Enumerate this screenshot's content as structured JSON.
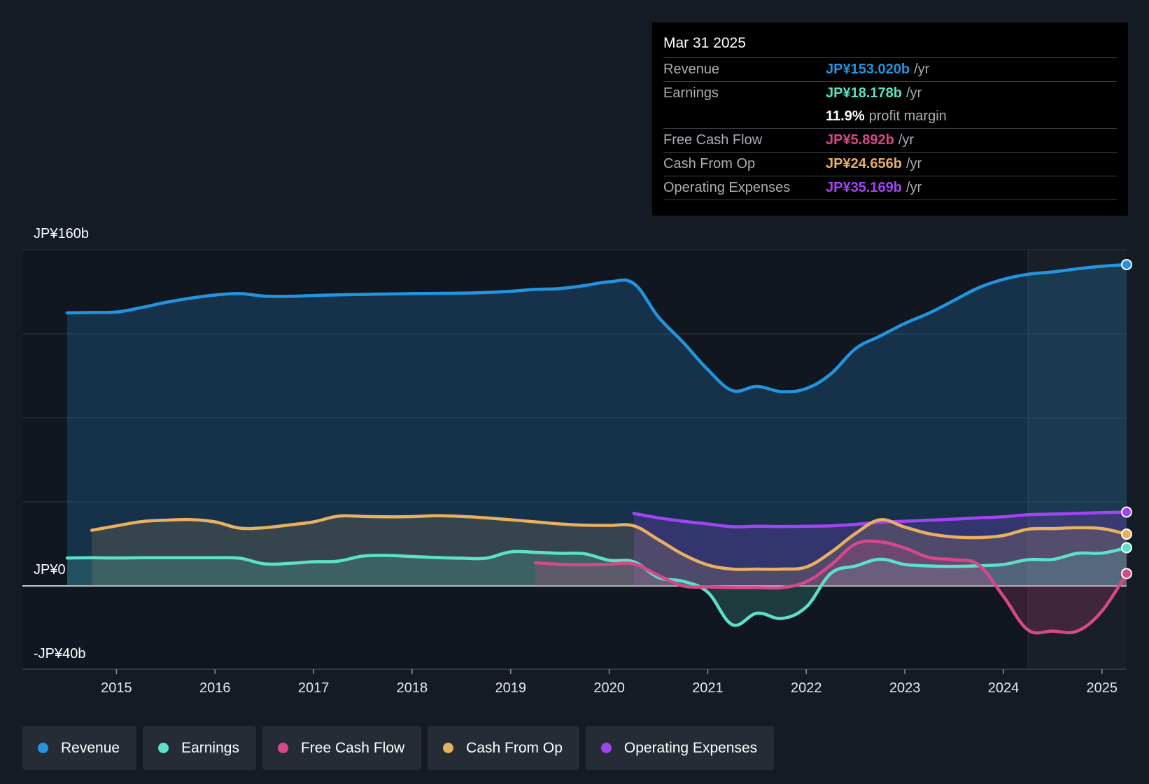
{
  "chart_data": {
    "type": "area",
    "title": "",
    "y_unit_prefix": "JP¥",
    "y_tick_labels": [
      "JP¥160b",
      "JP¥0",
      "-JP¥40b"
    ],
    "ylim": [
      -40,
      160
    ],
    "xlim": [
      2014.5,
      2025.25
    ],
    "x_tick_labels": [
      "2015",
      "2016",
      "2017",
      "2018",
      "2019",
      "2020",
      "2021",
      "2022",
      "2023",
      "2024",
      "2025"
    ],
    "x_ticks": [
      2015,
      2016,
      2017,
      2018,
      2019,
      2020,
      2021,
      2022,
      2023,
      2024,
      2025
    ],
    "highlight_start": 2024.25,
    "series": [
      {
        "name": "Revenue",
        "color": "#2394df",
        "x": [
          2014.5,
          2014.75,
          2015.0,
          2015.25,
          2015.5,
          2015.75,
          2016.0,
          2016.25,
          2016.5,
          2016.75,
          2017.0,
          2017.25,
          2017.5,
          2017.75,
          2018.0,
          2018.25,
          2018.5,
          2018.75,
          2019.0,
          2019.25,
          2019.5,
          2019.75,
          2020.0,
          2020.25,
          2020.5,
          2020.75,
          2021.0,
          2021.25,
          2021.5,
          2021.75,
          2022.0,
          2022.25,
          2022.5,
          2022.75,
          2023.0,
          2023.25,
          2023.5,
          2023.75,
          2024.0,
          2024.25,
          2024.5,
          2024.75,
          2025.0,
          2025.25
        ],
        "values": [
          130,
          130.2,
          130.4,
          132.5,
          135,
          137,
          138.5,
          139.2,
          138,
          137.9,
          138.3,
          138.6,
          138.8,
          139,
          139.2,
          139.3,
          139.4,
          139.7,
          140.3,
          141.2,
          141.6,
          143,
          144.8,
          144,
          128,
          116,
          103,
          93,
          95,
          92.5,
          94,
          101,
          113,
          119,
          125,
          130,
          136,
          142,
          146,
          148.4,
          149.5,
          151,
          152.2,
          153.02
        ]
      },
      {
        "name": "Earnings",
        "color": "#5ce1c8",
        "x": [
          2014.5,
          2014.75,
          2015.0,
          2015.25,
          2015.5,
          2015.75,
          2016.0,
          2016.25,
          2016.5,
          2016.75,
          2017.0,
          2017.25,
          2017.5,
          2017.75,
          2018.0,
          2018.25,
          2018.5,
          2018.75,
          2019.0,
          2019.25,
          2019.5,
          2019.75,
          2020.0,
          2020.25,
          2020.5,
          2020.75,
          2021.0,
          2021.25,
          2021.5,
          2021.75,
          2022.0,
          2022.25,
          2022.5,
          2022.75,
          2023.0,
          2023.25,
          2023.5,
          2023.75,
          2024.0,
          2024.25,
          2024.5,
          2024.75,
          2025.0,
          2025.25
        ],
        "values": [
          13.3,
          13.4,
          13.3,
          13.4,
          13.4,
          13.4,
          13.4,
          13.2,
          10.5,
          10.7,
          11.5,
          11.8,
          14.2,
          14.5,
          14,
          13.5,
          13.2,
          13.2,
          16.2,
          16,
          15.5,
          15.3,
          12.2,
          11.5,
          4,
          2.2,
          -3,
          -18.5,
          -13,
          -15.5,
          -10,
          6,
          9.5,
          12.7,
          10.2,
          9.5,
          9.3,
          9.6,
          10.2,
          12.5,
          12.6,
          15.5,
          15.6,
          18.178
        ]
      },
      {
        "name": "Free Cash Flow",
        "color": "#d64888",
        "x": [
          2019.25,
          2019.5,
          2019.75,
          2020.0,
          2020.25,
          2020.5,
          2020.75,
          2021.0,
          2021.25,
          2021.5,
          2021.75,
          2022.0,
          2022.25,
          2022.5,
          2022.75,
          2023.0,
          2023.25,
          2023.5,
          2023.75,
          2024.0,
          2024.25,
          2024.5,
          2024.75,
          2025.0,
          2025.25
        ],
        "values": [
          11,
          10.3,
          10.1,
          10.3,
          10.5,
          5,
          0,
          -0.5,
          -0.8,
          -0.8,
          -0.8,
          2,
          10,
          20,
          21,
          18,
          13.5,
          12.5,
          10,
          -5,
          -21,
          -21.5,
          -21.5,
          -12,
          5.892
        ]
      },
      {
        "name": "Cash From Op",
        "color": "#e8b05f",
        "x": [
          2014.75,
          2015.0,
          2015.25,
          2015.5,
          2015.75,
          2016.0,
          2016.25,
          2016.5,
          2016.75,
          2017.0,
          2017.25,
          2017.5,
          2017.75,
          2018.0,
          2018.25,
          2018.5,
          2018.75,
          2019.0,
          2019.25,
          2019.5,
          2019.75,
          2020.0,
          2020.25,
          2020.5,
          2020.75,
          2021.0,
          2021.25,
          2021.5,
          2021.75,
          2022.0,
          2022.25,
          2022.5,
          2022.75,
          2023.0,
          2023.25,
          2023.5,
          2023.75,
          2024.0,
          2024.25,
          2024.5,
          2024.75,
          2025.0,
          2025.25
        ],
        "values": [
          26.5,
          28.6,
          30.6,
          31.3,
          31.6,
          30.5,
          27.5,
          27.7,
          29,
          30.5,
          33.2,
          33.1,
          32.9,
          33,
          33.4,
          33.1,
          32.4,
          31.5,
          30.5,
          29.5,
          28.9,
          28.8,
          28.6,
          22,
          15,
          10,
          8,
          8,
          8,
          9,
          16,
          25,
          31.5,
          28,
          24.8,
          23.3,
          23,
          24,
          27,
          27.3,
          27.7,
          27.3,
          24.656
        ]
      },
      {
        "name": "Operating Expenses",
        "color": "#a145f2",
        "x": [
          2020.25,
          2020.5,
          2020.75,
          2021.0,
          2021.25,
          2021.5,
          2021.75,
          2022.0,
          2022.25,
          2022.5,
          2022.75,
          2023.0,
          2023.25,
          2023.5,
          2023.75,
          2024.0,
          2024.25,
          2024.5,
          2024.75,
          2025.0,
          2025.25
        ],
        "values": [
          34.5,
          32.4,
          30.8,
          29.5,
          28.2,
          28.4,
          28.3,
          28.4,
          28.6,
          29.3,
          30.3,
          30.8,
          31.3,
          31.8,
          32.4,
          32.9,
          33.9,
          34.2,
          34.5,
          34.9,
          35.169
        ]
      }
    ]
  },
  "tooltip": {
    "date": "Mar 31 2025",
    "rows": [
      {
        "label": "Revenue",
        "value": "JP¥153.020b",
        "unit": "/yr",
        "color": "#2394df"
      },
      {
        "label": "Earnings",
        "value": "JP¥18.178b",
        "unit": "/yr",
        "color": "#5ce1c8"
      },
      {
        "label": "",
        "value": "11.9%",
        "unit": "profit margin",
        "color": "#ffffff"
      },
      {
        "label": "Free Cash Flow",
        "value": "JP¥5.892b",
        "unit": "/yr",
        "color": "#d64888"
      },
      {
        "label": "Cash From Op",
        "value": "JP¥24.656b",
        "unit": "/yr",
        "color": "#e8b05f"
      },
      {
        "label": "Operating Expenses",
        "value": "JP¥35.169b",
        "unit": "/yr",
        "color": "#a145f2"
      }
    ]
  },
  "legend": [
    {
      "label": "Revenue",
      "color": "#2394df"
    },
    {
      "label": "Earnings",
      "color": "#5ce1c8"
    },
    {
      "label": "Free Cash Flow",
      "color": "#d64888"
    },
    {
      "label": "Cash From Op",
      "color": "#e8b05f"
    },
    {
      "label": "Operating Expenses",
      "color": "#a145f2"
    }
  ]
}
